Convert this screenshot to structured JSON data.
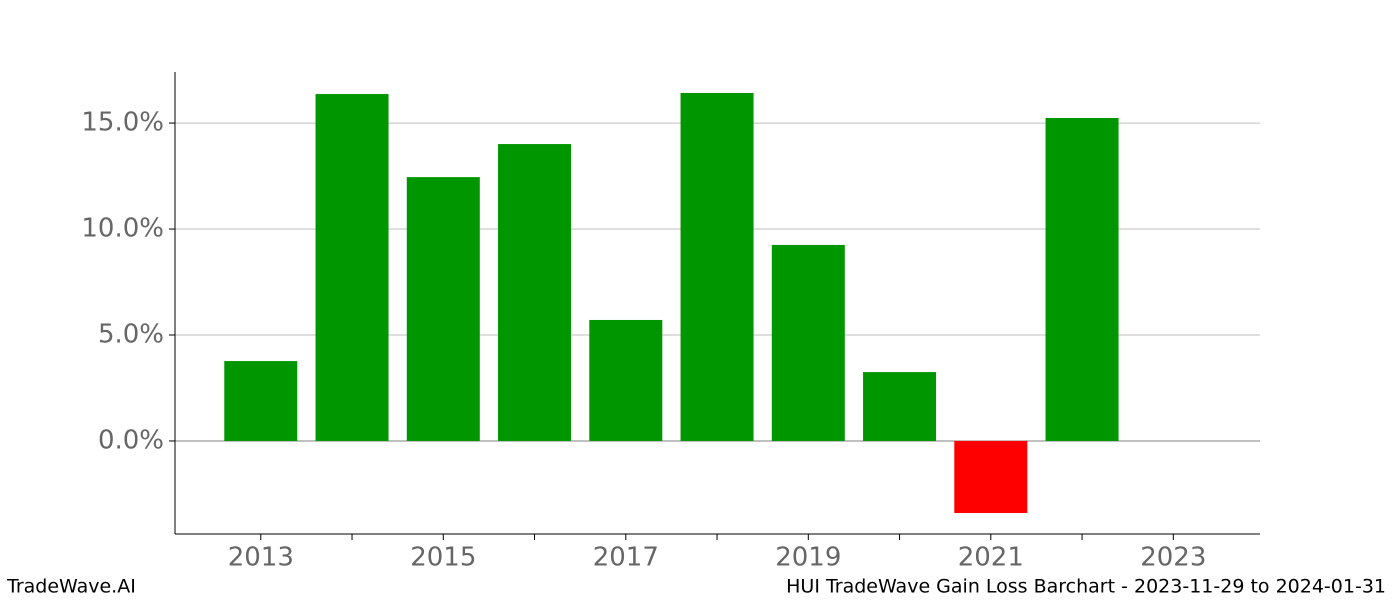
{
  "chart_data": {
    "type": "bar",
    "x": [
      2013,
      2014,
      2015,
      2016,
      2017,
      2018,
      2019,
      2020,
      2021,
      2022
    ],
    "values": [
      3.77,
      16.37,
      12.45,
      14.01,
      5.71,
      16.42,
      9.25,
      3.25,
      -3.4,
      15.24
    ],
    "colors": [
      "#009600",
      "#009600",
      "#009600",
      "#009600",
      "#009600",
      "#009600",
      "#009600",
      "#009600",
      "#ff0000",
      "#009600"
    ],
    "xlim": [
      2012.06,
      2023.95
    ],
    "xticks": [
      2013,
      2015,
      2017,
      2019,
      2021,
      2023
    ],
    "xminorticks": [
      2014,
      2016,
      2018,
      2020,
      2022
    ],
    "ylim": [
      -4.39,
      17.41
    ],
    "yticks": [
      {
        "value": 0,
        "label": "0.0%"
      },
      {
        "value": 5,
        "label": "5.0%"
      },
      {
        "value": 10,
        "label": "10.0%"
      },
      {
        "value": 15,
        "label": "15.0%"
      }
    ],
    "grid": true,
    "footer_left": "TradeWave.AI",
    "footer_right": "HUI TradeWave Gain Loss Barchart - 2023-11-29 to 2024-01-31"
  }
}
